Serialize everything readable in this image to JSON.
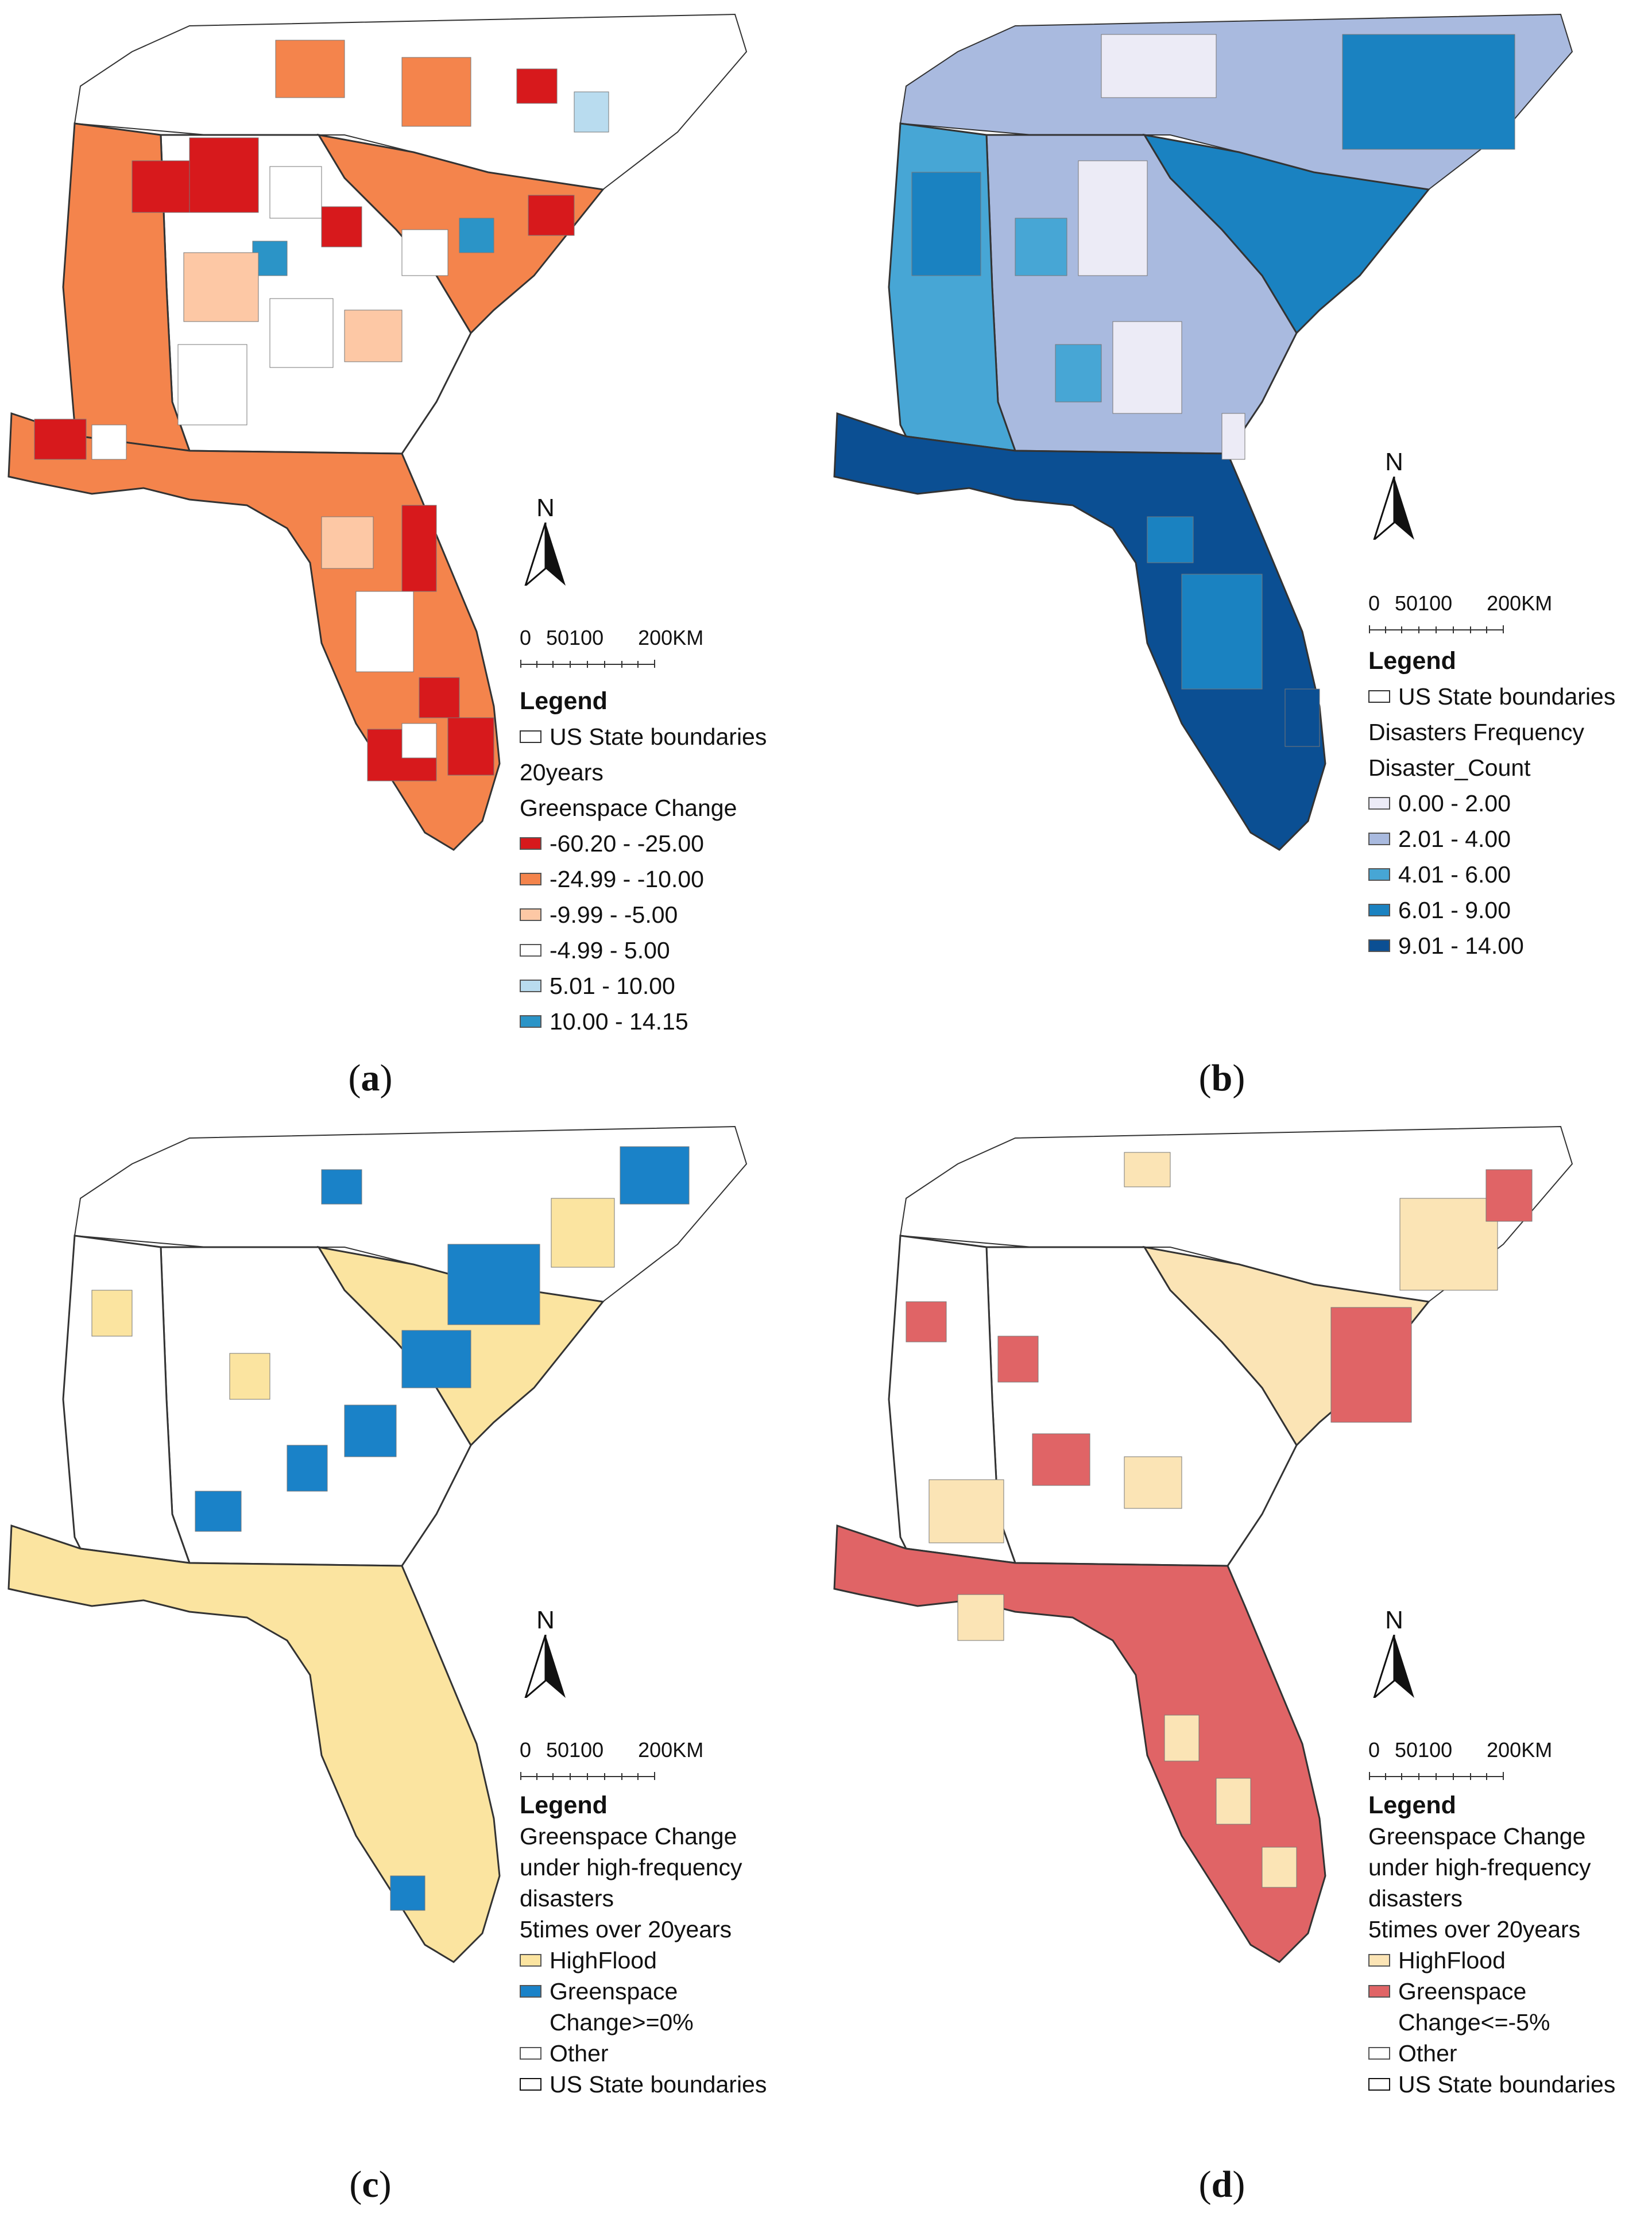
{
  "panels": [
    {
      "id": "a",
      "caption": "a",
      "north": "N",
      "scale": {
        "labels": [
          "0",
          "50100",
          "200KM"
        ]
      },
      "legend": {
        "title": "Legend",
        "boundary_label": "US State boundaries",
        "subtitle_lines": [
          "20years",
          "Greenspace Change"
        ],
        "classes": [
          {
            "label": "-60.20 - -25.00",
            "color": "#d7191c"
          },
          {
            "label": "-24.99 - -10.00",
            "color": "#f4844c"
          },
          {
            "label": "-9.99 - -5.00",
            "color": "#fdc8a5"
          },
          {
            "label": "-4.99 - 5.00",
            "color": "#ffffff"
          },
          {
            "label": "5.01 - 10.00",
            "color": "#b9dcef"
          },
          {
            "label": "10.00 - 14.15",
            "color": "#2b94c7"
          }
        ]
      }
    },
    {
      "id": "b",
      "caption": "b",
      "north": "N",
      "scale": {
        "labels": [
          "0",
          "50100",
          "200KM"
        ]
      },
      "legend": {
        "title": "Legend",
        "boundary_label": "US State boundaries",
        "subtitle_lines": [
          "Disasters Frequency",
          "Disaster_Count"
        ],
        "classes": [
          {
            "label": "0.00 - 2.00",
            "color": "#ecebf6"
          },
          {
            "label": "2.01 - 4.00",
            "color": "#a9badf"
          },
          {
            "label": "4.01 - 6.00",
            "color": "#47a6d5"
          },
          {
            "label": "6.01 - 9.00",
            "color": "#1a82c1"
          },
          {
            "label": "9.01 - 14.00",
            "color": "#0b4f93"
          }
        ]
      }
    },
    {
      "id": "c",
      "caption": "c",
      "north": "N",
      "scale": {
        "labels": [
          "0",
          "50100",
          "200KM"
        ]
      },
      "legend": {
        "title": "Legend",
        "subtitle_lines": [
          "Greenspace Change",
          "under high-frequency",
          "disasters",
          "5times over 20years"
        ],
        "classes": [
          {
            "label_lines": [
              "HighFlood"
            ],
            "color": "#fbe4a0"
          },
          {
            "label_lines": [
              "Greenspace",
              "Change>=0%"
            ],
            "color": "#1a82c8"
          },
          {
            "label_lines": [
              "Other"
            ],
            "color": "#ffffff"
          }
        ],
        "boundary_label": "US State boundaries"
      }
    },
    {
      "id": "d",
      "caption": "d",
      "north": "N",
      "scale": {
        "labels": [
          "0",
          "50100",
          "200KM"
        ]
      },
      "legend": {
        "title": "Legend",
        "subtitle_lines": [
          "Greenspace Change",
          "under high-frequency",
          "disasters",
          "5times over 20years"
        ],
        "classes": [
          {
            "label_lines": [
              "HighFlood"
            ],
            "color": "#fbe4b5"
          },
          {
            "label_lines": [
              "Greenspace",
              "Change<=-5%"
            ],
            "color": "#e06466"
          },
          {
            "label_lines": [
              "Other"
            ],
            "color": "#ffffff"
          }
        ],
        "boundary_label": "US State boundaries"
      }
    }
  ],
  "map_base_colors": {
    "a": "#f4844c",
    "b": "#1a82c1",
    "c": "#ffffff",
    "d": "#ffffff"
  },
  "florida_colors": {
    "a": "#f4844c",
    "b": "#1a82c1",
    "c": "#fbe4a0",
    "d": "#e06466"
  }
}
